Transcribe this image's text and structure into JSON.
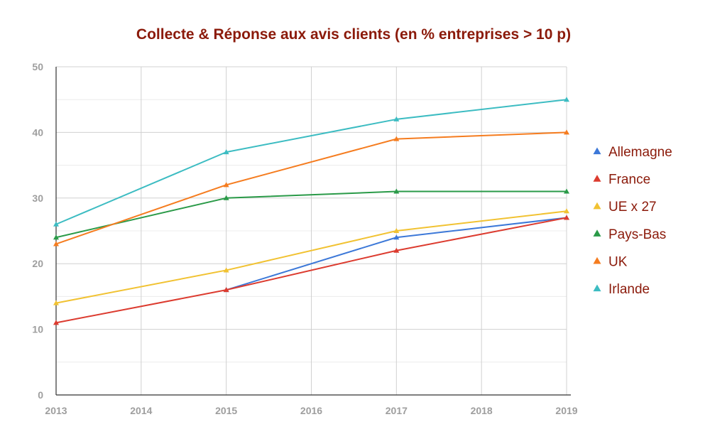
{
  "chart_data": {
    "type": "line",
    "title": "Collecte & Réponse aux avis clients (en % entreprises > 10 p)",
    "title_color": "#8b1a0a",
    "legend_text_color": "#8b1a0a",
    "xlabel": "",
    "ylabel": "",
    "x": [
      2013,
      2014,
      2015,
      2016,
      2017,
      2018,
      2019
    ],
    "x_tick_labels": [
      "2013",
      "2014",
      "2015",
      "2016",
      "2017",
      "2018",
      "2019"
    ],
    "ylim": [
      0,
      50
    ],
    "y_ticks": [
      0,
      10,
      20,
      30,
      40,
      50
    ],
    "y_tick_labels": [
      "0",
      "10",
      "20",
      "30",
      "40",
      "50"
    ],
    "y_minor_gridline_step": 5,
    "grid": true,
    "legend_position": "right",
    "marker": "triangle",
    "series": [
      {
        "name": "Allemagne",
        "color": "#3c78d8",
        "x": [
          2015,
          2017,
          2019
        ],
        "values": [
          16,
          24,
          27
        ]
      },
      {
        "name": "France",
        "color": "#dc3b2f",
        "x": [
          2013,
          2015,
          2017,
          2019
        ],
        "values": [
          11,
          16,
          22,
          27
        ]
      },
      {
        "name": "UE x 27",
        "color": "#f1c232",
        "x": [
          2013,
          2015,
          2017,
          2019
        ],
        "values": [
          14,
          19,
          25,
          28
        ]
      },
      {
        "name": "Pays-Bas",
        "color": "#2a9a48",
        "x": [
          2013,
          2015,
          2017,
          2019
        ],
        "values": [
          24,
          30,
          31,
          31
        ]
      },
      {
        "name": "UK",
        "color": "#f57c1f",
        "x": [
          2013,
          2015,
          2017,
          2019
        ],
        "values": [
          23,
          32,
          39,
          40
        ]
      },
      {
        "name": "Irlande",
        "color": "#3cbcc2",
        "x": [
          2013,
          2015,
          2017,
          2019
        ],
        "values": [
          26,
          37,
          42,
          45
        ]
      }
    ]
  }
}
